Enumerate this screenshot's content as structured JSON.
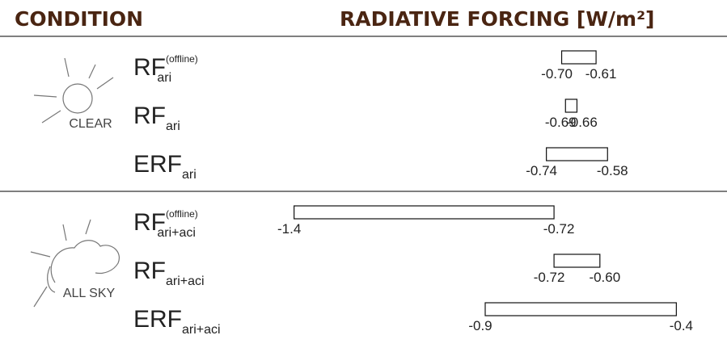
{
  "chart_data": {
    "type": "range",
    "condition_header": "CONDITION",
    "value_header": "RADIATIVE FORCING [W/m²]",
    "xlim": [
      -1.45,
      -0.35
    ],
    "groups": [
      {
        "label": "CLEAR",
        "rows": [
          {
            "name": "RF",
            "sup": "(offline)",
            "sub": "ari",
            "values": [
              -0.7,
              -0.61
            ],
            "value_labels": [
              "-0.70",
              "-0.61"
            ]
          },
          {
            "name": "RF",
            "sub": "ari",
            "values": [
              -0.69,
              -0.66
            ],
            "value_labels": [
              "-0.69",
              "-0.66"
            ]
          },
          {
            "name": "ERF",
            "sub": "ari",
            "values": [
              -0.74,
              -0.58
            ],
            "value_labels": [
              "-0.74",
              "-0.58"
            ]
          }
        ]
      },
      {
        "label": "ALL SKY",
        "rows": [
          {
            "name": "RF",
            "sup": "(offline)",
            "sub": "ari+aci",
            "values": [
              -1.4,
              -0.72
            ],
            "value_labels": [
              "-1.4",
              "-0.72"
            ]
          },
          {
            "name": "RF",
            "sub": "ari+aci",
            "values": [
              -0.72,
              -0.6
            ],
            "value_labels": [
              "-0.72",
              "-0.60"
            ]
          },
          {
            "name": "ERF",
            "sub": "ari+aci",
            "values": [
              -0.9,
              -0.4
            ],
            "value_labels": [
              "-0.9",
              "-0.4"
            ]
          }
        ]
      }
    ]
  }
}
